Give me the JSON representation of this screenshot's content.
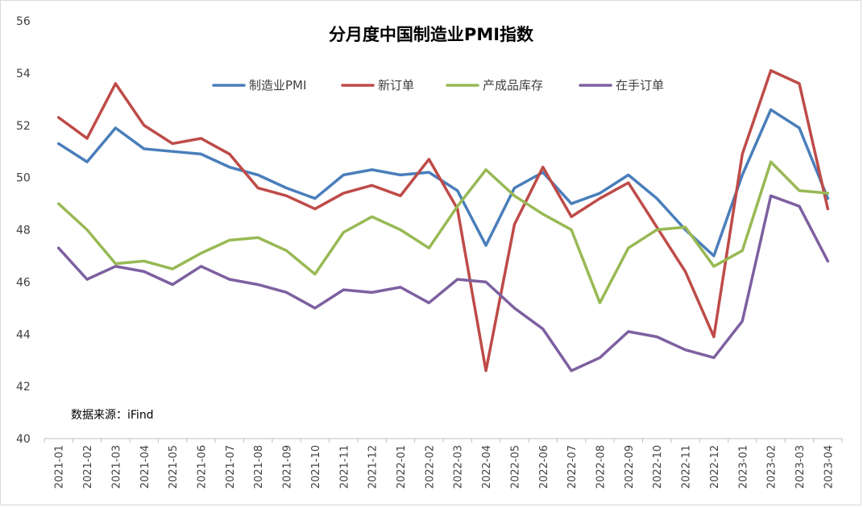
{
  "chart_data": {
    "type": "line",
    "title": "分月度中国制造业PMI指数",
    "source_note": "数据来源：iFind",
    "xlabel": "",
    "ylabel": "",
    "ylim": [
      40,
      56
    ],
    "y_ticks": [
      40,
      42,
      44,
      46,
      48,
      50,
      52,
      54,
      56
    ],
    "grid": false,
    "legend_position": "top",
    "categories": [
      "2021-01",
      "2021-02",
      "2021-03",
      "2021-04",
      "2021-05",
      "2021-06",
      "2021-07",
      "2021-08",
      "2021-09",
      "2021-10",
      "2021-11",
      "2021-12",
      "2022-01",
      "2022-02",
      "2022-03",
      "2022-04",
      "2022-05",
      "2022-06",
      "2022-07",
      "2022-08",
      "2022-09",
      "2022-10",
      "2022-11",
      "2022-12",
      "2023-01",
      "2023-02",
      "2023-03",
      "2023-04"
    ],
    "series": [
      {
        "name": "制造业PMI",
        "color": "#4a7ebb",
        "values": [
          51.3,
          50.6,
          51.9,
          51.1,
          51.0,
          50.9,
          50.4,
          50.1,
          49.6,
          49.2,
          50.1,
          50.3,
          50.1,
          50.2,
          49.5,
          47.4,
          49.6,
          50.2,
          49.0,
          49.4,
          50.1,
          49.2,
          48.0,
          47.0,
          50.1,
          52.6,
          51.9,
          49.2
        ]
      },
      {
        "name": "新订单",
        "color": "#be4b48",
        "values": [
          52.3,
          51.5,
          53.6,
          52.0,
          51.3,
          51.5,
          50.9,
          49.6,
          49.3,
          48.8,
          49.4,
          49.7,
          49.3,
          50.7,
          48.8,
          42.6,
          48.2,
          50.4,
          48.5,
          49.2,
          49.8,
          48.1,
          46.4,
          43.9,
          50.9,
          54.1,
          53.6,
          48.8
        ]
      },
      {
        "name": "产成品库存",
        "color": "#98b954",
        "values": [
          49.0,
          48.0,
          46.7,
          46.8,
          46.5,
          47.1,
          47.6,
          47.7,
          47.2,
          46.3,
          47.9,
          48.5,
          48.0,
          47.3,
          48.9,
          50.3,
          49.3,
          48.6,
          48.0,
          45.2,
          47.3,
          48.0,
          48.1,
          46.6,
          47.2,
          50.6,
          49.5,
          49.4
        ]
      },
      {
        "name": "在手订单",
        "color": "#7d60a0",
        "values": [
          47.3,
          46.1,
          46.6,
          46.4,
          45.9,
          46.6,
          46.1,
          45.9,
          45.6,
          45.0,
          45.7,
          45.6,
          45.8,
          45.2,
          46.1,
          46.0,
          45.0,
          44.2,
          42.6,
          43.1,
          44.1,
          43.9,
          43.4,
          43.1,
          44.5,
          49.3,
          48.9,
          46.8
        ]
      }
    ]
  }
}
